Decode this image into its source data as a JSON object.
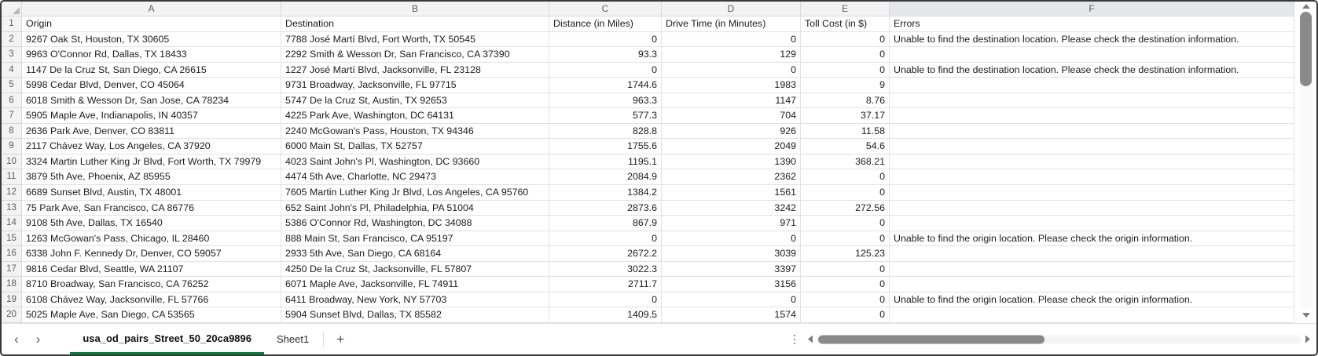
{
  "colors": {
    "accent": "#107C41",
    "grid_line": "#e2e2e2",
    "header_bg": "#f3f3f3",
    "header_line": "#d8d8d8",
    "header_text": "#5f5f5f",
    "cell_text": "#1c1c1c",
    "thumb": "#8a8a8a"
  },
  "sheet": {
    "column_letters": [
      "A",
      "B",
      "C",
      "D",
      "E",
      "F"
    ],
    "selected_column": "F",
    "rows": [
      {
        "n": "1",
        "cells": [
          "Origin",
          "Destination",
          "Distance (in Miles)",
          "Drive Time (in Minutes)",
          "Toll Cost (in $)",
          "Errors"
        ]
      },
      {
        "n": "2",
        "cells": [
          "9267 Oak St, Houston, TX 30605",
          "7788 José Martí Blvd, Fort Worth, TX 50545",
          "0",
          "0",
          "0",
          "Unable to find the destination location. Please check the destination information."
        ]
      },
      {
        "n": "3",
        "cells": [
          "9963 O'Connor Rd, Dallas, TX 18433",
          "2292 Smith & Wesson Dr, San Francisco, CA 37390",
          "93.3",
          "129",
          "0",
          ""
        ]
      },
      {
        "n": "4",
        "cells": [
          "1147 De la Cruz St, San Diego, CA 26615",
          "1227 José Martí Blvd, Jacksonville, FL 23128",
          "0",
          "0",
          "0",
          "Unable to find the destination location. Please check the destination information."
        ]
      },
      {
        "n": "5",
        "cells": [
          "5998 Cedar Blvd, Denver, CO 45064",
          "9731 Broadway, Jacksonville, FL 97715",
          "1744.6",
          "1983",
          "9",
          ""
        ]
      },
      {
        "n": "6",
        "cells": [
          "6018 Smith & Wesson Dr, San Jose, CA 78234",
          "5747 De la Cruz St, Austin, TX 92653",
          "963.3",
          "1147",
          "8.76",
          ""
        ]
      },
      {
        "n": "7",
        "cells": [
          "5905 Maple Ave, Indianapolis, IN 40357",
          "4225 Park Ave, Washington, DC 64131",
          "577.3",
          "704",
          "37.17",
          ""
        ]
      },
      {
        "n": "8",
        "cells": [
          "2636 Park Ave, Denver, CO 83811",
          "2240 McGowan's Pass, Houston, TX 94346",
          "828.8",
          "926",
          "11.58",
          ""
        ]
      },
      {
        "n": "9",
        "cells": [
          "2117 Chávez Way, Los Angeles, CA 37920",
          "6000 Main St, Dallas, TX 52757",
          "1755.6",
          "2049",
          "54.6",
          ""
        ]
      },
      {
        "n": "10",
        "cells": [
          "3324 Martin Luther King Jr Blvd, Fort Worth, TX 79979",
          "4023 Saint John's Pl, Washington, DC 93660",
          "1195.1",
          "1390",
          "368.21",
          ""
        ]
      },
      {
        "n": "11",
        "cells": [
          "3879 5th Ave, Phoenix, AZ 85955",
          "4474 5th Ave, Charlotte, NC 29473",
          "2084.9",
          "2362",
          "0",
          ""
        ]
      },
      {
        "n": "12",
        "cells": [
          "6689 Sunset Blvd, Austin, TX 48001",
          "7605 Martin Luther King Jr Blvd, Los Angeles, CA 95760",
          "1384.2",
          "1561",
          "0",
          ""
        ]
      },
      {
        "n": "13",
        "cells": [
          "75 Park Ave, San Francisco, CA 86776",
          "652 Saint John's Pl, Philadelphia, PA 51004",
          "2873.6",
          "3242",
          "272.56",
          ""
        ]
      },
      {
        "n": "14",
        "cells": [
          "9108 5th Ave, Dallas, TX 16540",
          "5386 O'Connor Rd, Washington, DC 34088",
          "867.9",
          "971",
          "0",
          ""
        ]
      },
      {
        "n": "15",
        "cells": [
          "1263 McGowan's Pass, Chicago, IL 28460",
          "888 Main St, San Francisco, CA 95197",
          "0",
          "0",
          "0",
          "Unable to find the origin location. Please check the origin information."
        ]
      },
      {
        "n": "16",
        "cells": [
          "6338 John F. Kennedy Dr, Denver, CO 59057",
          "2933 5th Ave, San Diego, CA 68164",
          "2672.2",
          "3039",
          "125.23",
          ""
        ]
      },
      {
        "n": "17",
        "cells": [
          "9816 Cedar Blvd, Seattle, WA 21107",
          "4250 De la Cruz St, Jacksonville, FL 57807",
          "3022.3",
          "3397",
          "0",
          ""
        ]
      },
      {
        "n": "18",
        "cells": [
          "8710 Broadway, San Francisco, CA 76252",
          "6071 Maple Ave, Jacksonville, FL 74911",
          "2711.7",
          "3156",
          "0",
          ""
        ]
      },
      {
        "n": "19",
        "cells": [
          "6108 Chávez Way, Jacksonville, FL 57766",
          "6411 Broadway, New York, NY 57703",
          "0",
          "0",
          "0",
          "Unable to find the origin location. Please check the origin information."
        ]
      },
      {
        "n": "20",
        "cells": [
          "5025 Maple Ave, San Diego, CA 53565",
          "5904 Sunset Blvd, Dallas, TX 85582",
          "1409.5",
          "1574",
          "0",
          ""
        ]
      }
    ]
  },
  "tab_bar": {
    "prev_icon": "‹",
    "next_icon": "›",
    "active_tab": "usa_od_pairs_Street_50_20ca9896",
    "other_tab": "Sheet1",
    "add_sheet": "+",
    "more": "⋮"
  }
}
